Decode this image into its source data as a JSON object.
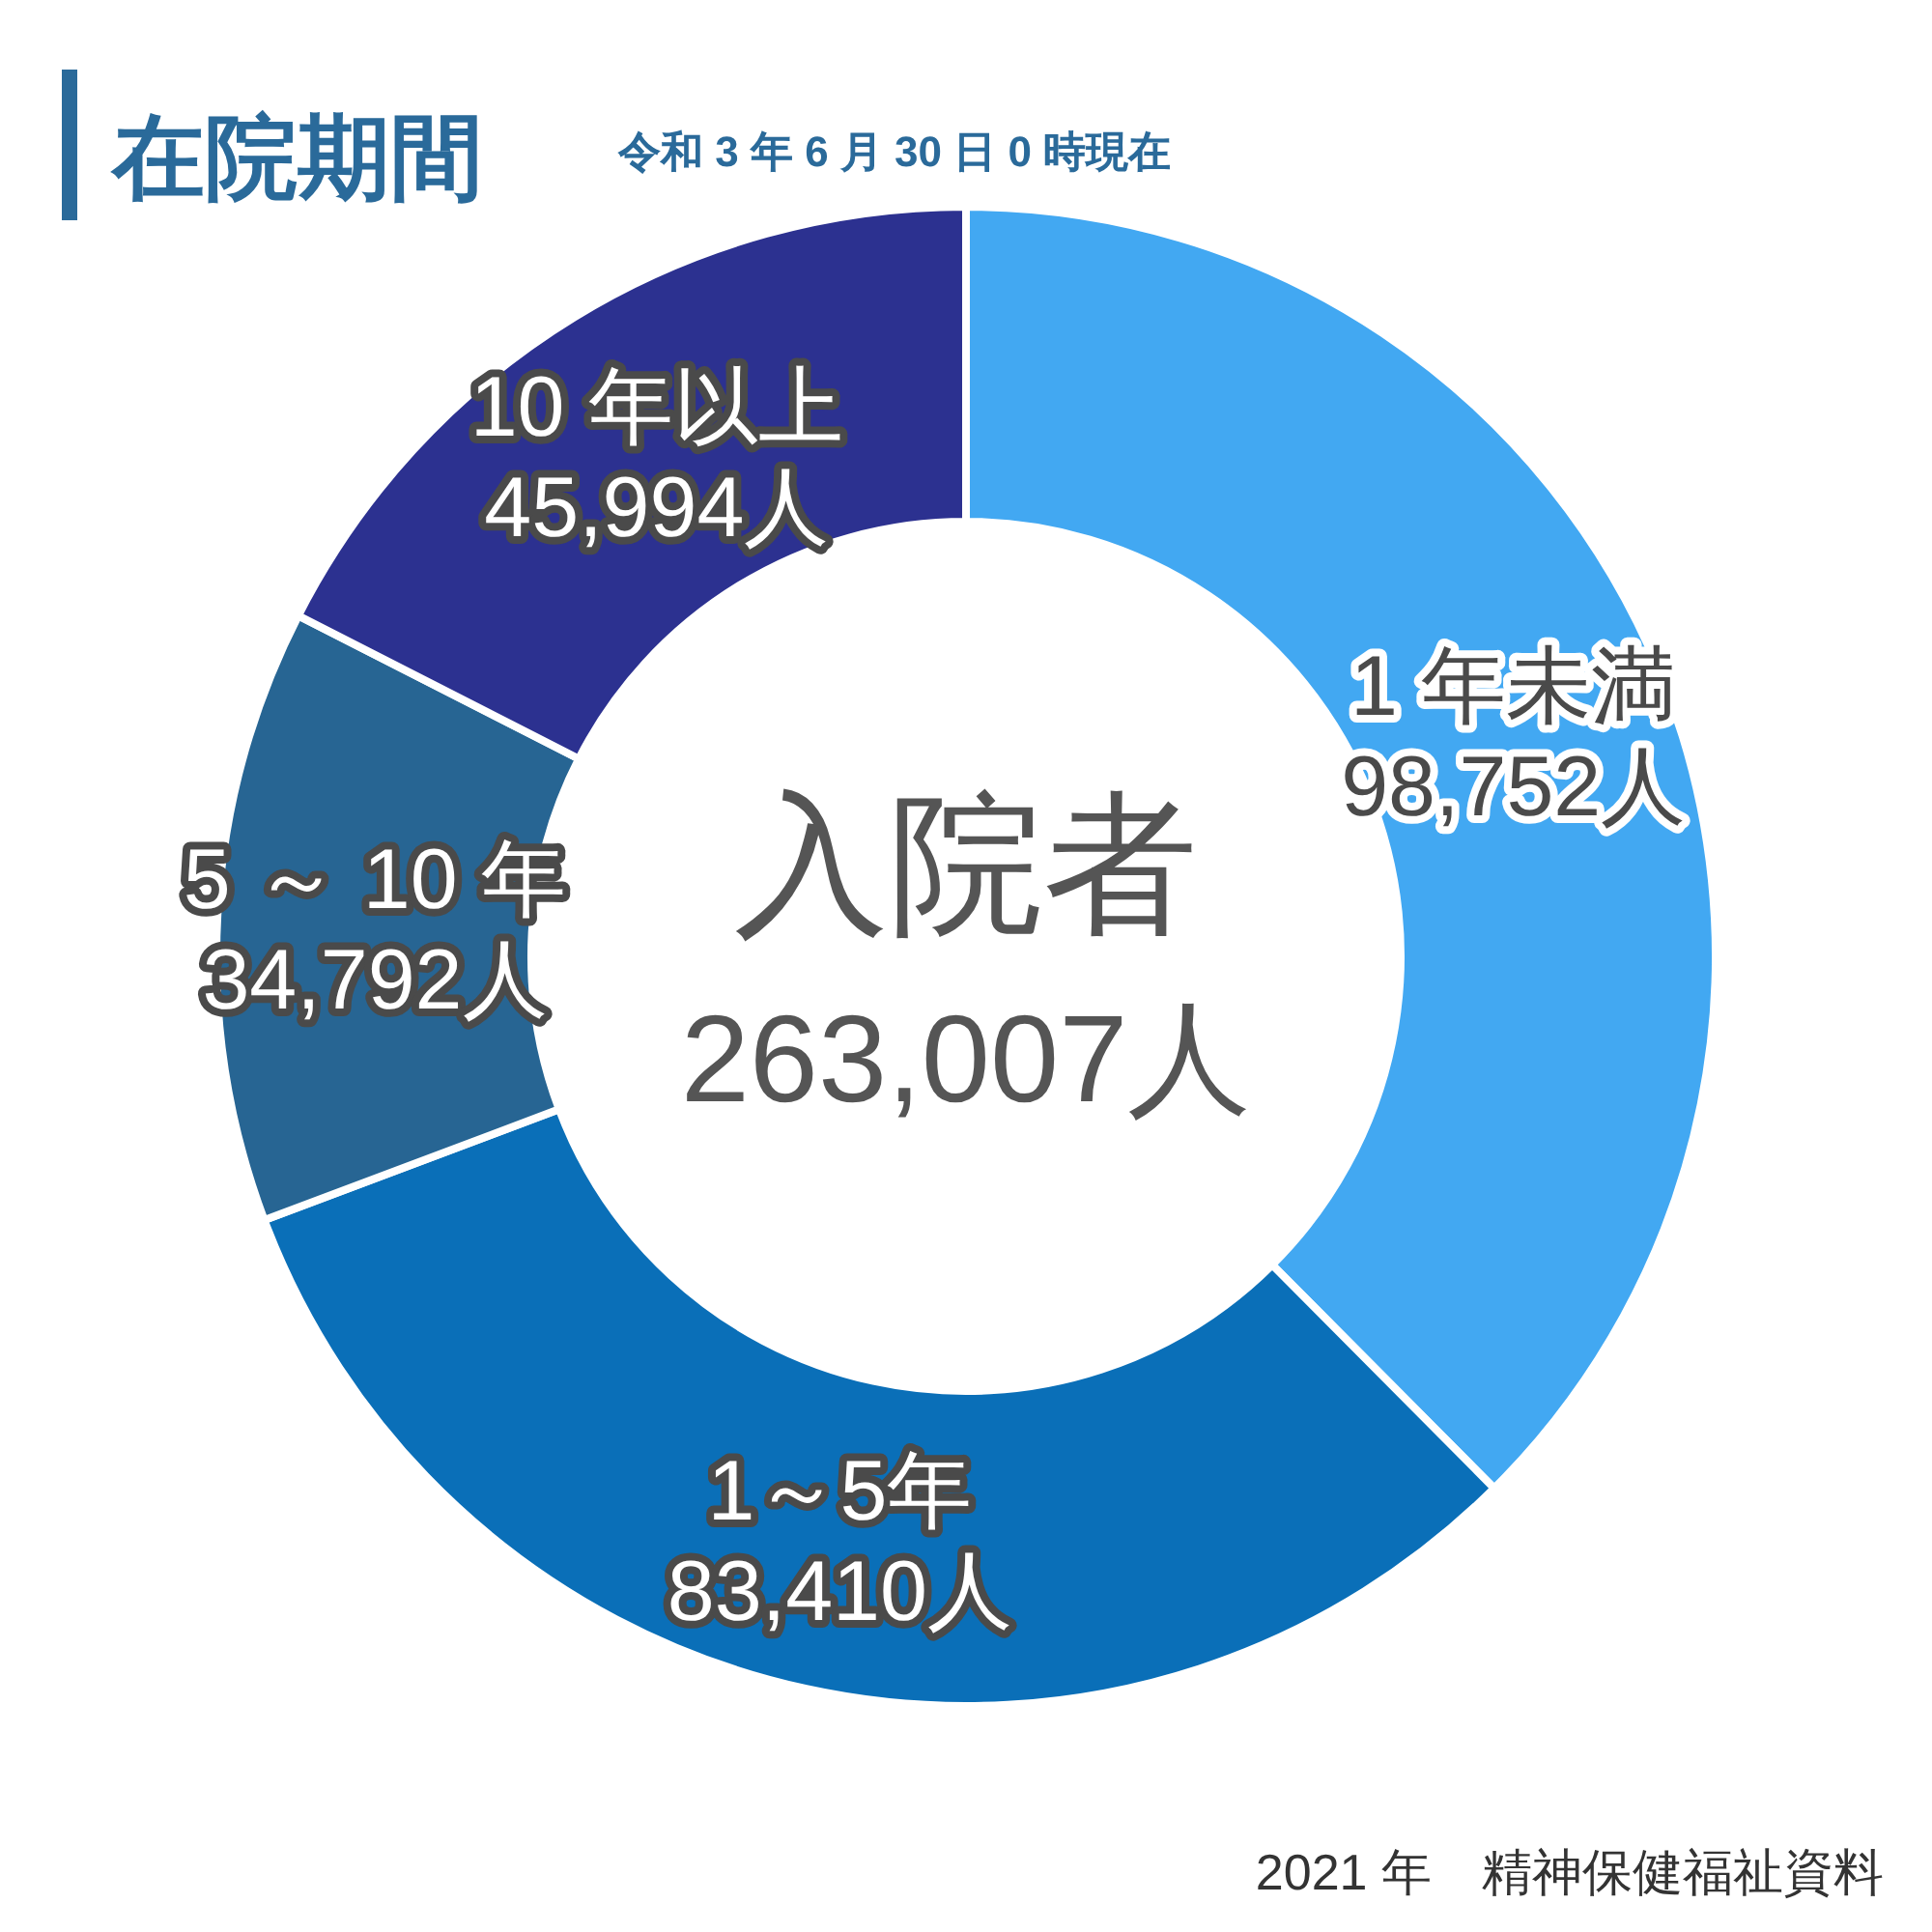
{
  "chart_data": {
    "type": "donut",
    "title": "在院期間",
    "subtitle": "令和 3 年 6 月 30 日 0 時現在",
    "categories": [
      "1 年未満",
      "1～5年",
      "5 ～ 10 年",
      "10 年以上"
    ],
    "values": [
      98752,
      83410,
      34792,
      45994
    ],
    "colors": [
      "#42a8f2",
      "#0a6fb8",
      "#276593",
      "#2c3190"
    ],
    "value_labels": [
      "98,752人",
      "83,410人",
      "34,792人",
      "45,994人"
    ],
    "annotations": [
      "入院者",
      "263,007人",
      "2021 年　精神保健福祉資料"
    ]
  }
}
